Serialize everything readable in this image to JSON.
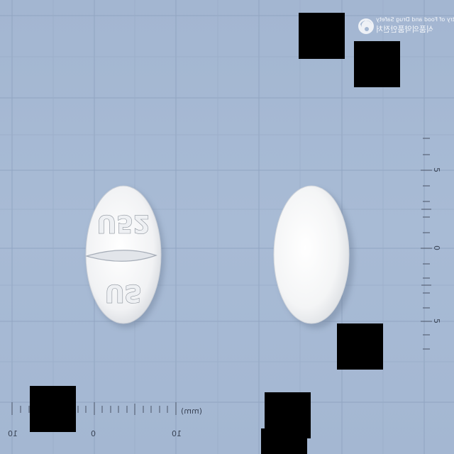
{
  "logo": {
    "name": "Ministry of Food and Drug Safety",
    "name_korean": "식품의약품안전처",
    "icon": "mfds-emblem-icon"
  },
  "tablet": {
    "imprint_top": "U52",
    "imprint_bottom": "US",
    "front_score": "horizontal-score-line",
    "color": "#ffffff"
  },
  "ruler_horizontal": {
    "ticks": [
      "10",
      "0",
      "10"
    ],
    "unit": "(mm)"
  },
  "ruler_vertical": {
    "ticks": [
      "5",
      "0",
      "5"
    ]
  },
  "colors": {
    "background": "#a5b8d3",
    "grid": "#8ea2bf",
    "tablet": "#ffffff",
    "redaction": "#000000"
  }
}
